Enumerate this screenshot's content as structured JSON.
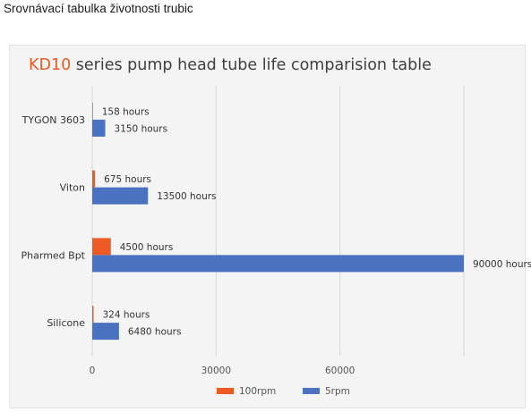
{
  "page": {
    "heading": "Srovnávací tabulka životnosti trubic"
  },
  "chart_data": {
    "type": "bar",
    "orientation": "horizontal",
    "title_prefix": "KD10",
    "title_rest": " series pump head tube life comparision table",
    "categories": [
      "TYGON 3603",
      "Viton",
      "Pharmed Bpt",
      "Silicone"
    ],
    "series": [
      {
        "name": "100rpm",
        "color": "#ee5a24",
        "values": [
          158,
          675,
          4500,
          324
        ],
        "labels": [
          "158  hours",
          "675 hours",
          "4500 hours",
          "324 hours"
        ]
      },
      {
        "name": "5rpm",
        "color": "#4a72c0",
        "values": [
          3150,
          13500,
          90000,
          6480
        ],
        "labels": [
          "3150  hours",
          "13500 hours",
          "90000 hours",
          "6480 hours"
        ]
      }
    ],
    "xlim": [
      0,
      90000
    ],
    "xticks": [
      0,
      30000,
      60000
    ],
    "xtick_labels": [
      "0",
      "30000",
      "60000"
    ],
    "gridlines": true,
    "legend_position": "bottom-center",
    "title_accent_color": "#ee5a24",
    "grid_color": "#d9d9d9"
  }
}
